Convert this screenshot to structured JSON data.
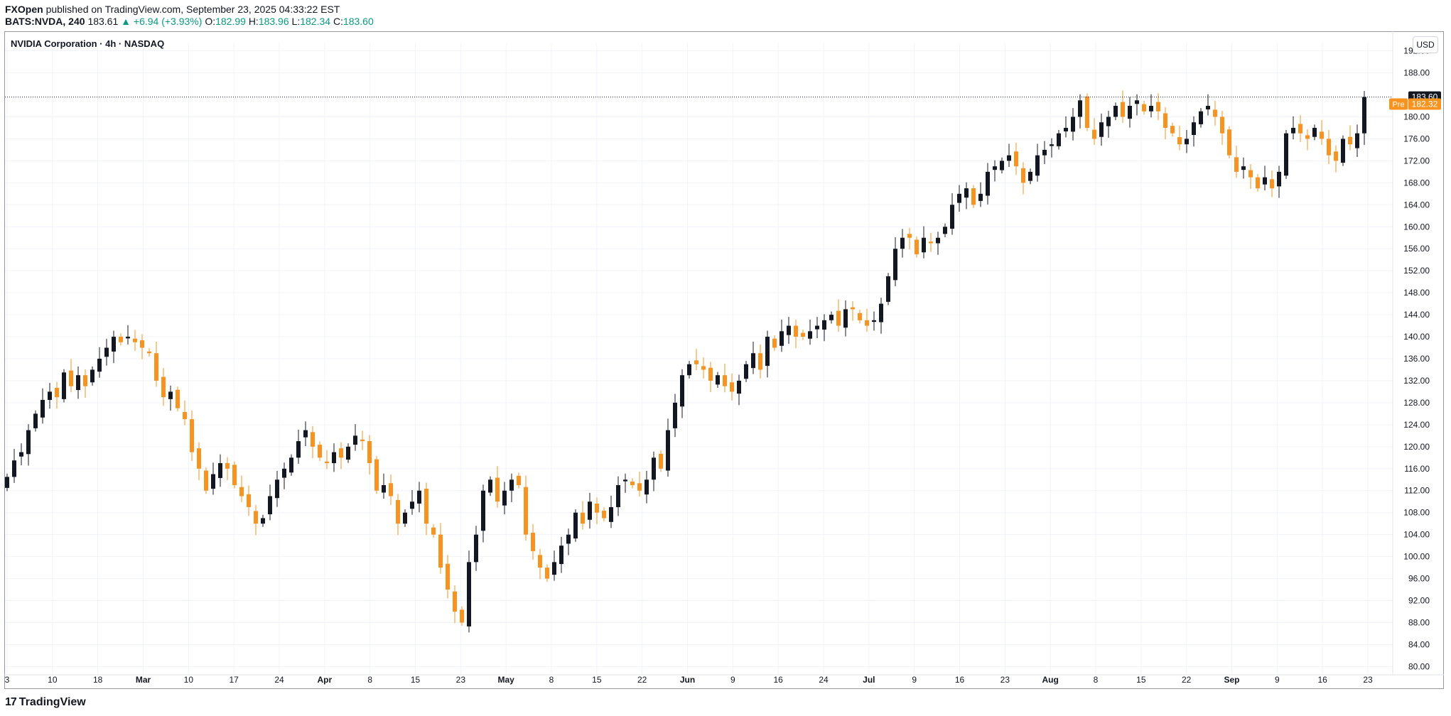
{
  "header": {
    "publisher": "FXOpen",
    "published_text": "published on TradingView.com, September 23, 2025 04:33:22 EST",
    "symbol": "BATS:NVDA, 240",
    "last": "183.61",
    "change": "+6.94 (+3.93%)",
    "o_label": "O:",
    "o": "182.99",
    "h_label": "H:",
    "h": "183.96",
    "l_label": "L:",
    "l": "182.34",
    "c_label": "C:",
    "c": "183.60"
  },
  "legend": {
    "title": "NVIDIA Corporation · 4h · NASDAQ"
  },
  "currency": "USD",
  "footer": {
    "brand": "TradingView",
    "logo_icon": "tradingview-logo-icon"
  },
  "colors": {
    "up": "#131722",
    "down": "#f7931e",
    "accent_up": "#089981",
    "grid": "#f0f3fa",
    "price_tag": "#131722",
    "pre_tag": "#f7931e"
  },
  "chart_data": {
    "type": "candlestick",
    "x_tick_labels": [
      "3",
      "10",
      "18",
      "Mar",
      "10",
      "17",
      "24",
      "Apr",
      "8",
      "15",
      "23",
      "May",
      "8",
      "15",
      "22",
      "Jun",
      "9",
      "16",
      "24",
      "Jul",
      "9",
      "16",
      "23",
      "Aug",
      "8",
      "15",
      "22",
      "Sep",
      "9",
      "16",
      "23"
    ],
    "y_tick_labels": [
      "80.00",
      "84.00",
      "88.00",
      "92.00",
      "96.00",
      "100.00",
      "104.00",
      "108.00",
      "112.00",
      "116.00",
      "120.00",
      "124.00",
      "128.00",
      "132.00",
      "136.00",
      "140.00",
      "144.00",
      "148.00",
      "152.00",
      "156.00",
      "160.00",
      "164.00",
      "168.00",
      "172.00",
      "176.00",
      "180.00",
      "188.00",
      "192.00"
    ],
    "ylim": [
      78.5,
      193.5
    ],
    "last_price": "183.60",
    "pre_label": "Pre",
    "pre_price": "182.32",
    "closes": [
      114.5,
      117.5,
      119,
      123,
      126,
      128.5,
      130,
      129,
      133.5,
      131,
      133,
      131,
      134,
      136,
      138,
      140,
      139,
      140,
      139,
      138,
      137,
      132,
      129,
      130,
      127,
      125,
      119,
      116,
      112,
      115,
      117,
      116,
      113,
      111,
      109,
      106,
      107,
      111,
      114,
      116,
      118,
      121,
      123,
      120,
      118,
      117,
      119,
      118,
      120,
      122,
      121,
      117,
      112,
      113,
      111,
      106,
      108,
      110,
      112,
      106,
      104,
      98,
      94,
      90,
      88,
      99,
      104,
      112,
      114,
      110,
      112,
      114,
      113,
      104,
      101,
      98,
      96,
      99,
      102,
      104,
      108,
      106,
      110,
      108,
      107,
      109,
      113,
      114,
      113,
      112,
      114,
      118,
      116,
      123,
      128,
      133,
      135,
      135,
      134,
      132,
      133,
      131,
      130,
      132,
      135,
      137,
      134,
      140,
      138,
      141,
      142,
      140,
      140,
      141,
      142,
      143,
      144,
      142,
      145,
      145,
      143,
      142,
      143,
      146,
      151,
      156,
      158,
      158,
      155,
      158,
      157,
      158,
      160,
      164,
      166,
      167,
      164,
      166,
      170,
      171,
      172,
      173,
      171,
      168,
      170,
      173,
      174,
      175,
      177,
      178,
      180,
      183,
      178,
      176,
      179,
      180,
      182,
      180,
      182,
      183,
      181,
      182,
      181,
      178,
      177,
      175,
      176,
      179,
      181,
      182,
      180,
      177,
      173,
      170,
      171,
      169,
      167,
      169,
      167,
      170,
      177,
      178,
      177,
      176,
      178,
      176,
      173,
      172,
      176,
      175,
      177,
      183.6
    ]
  }
}
